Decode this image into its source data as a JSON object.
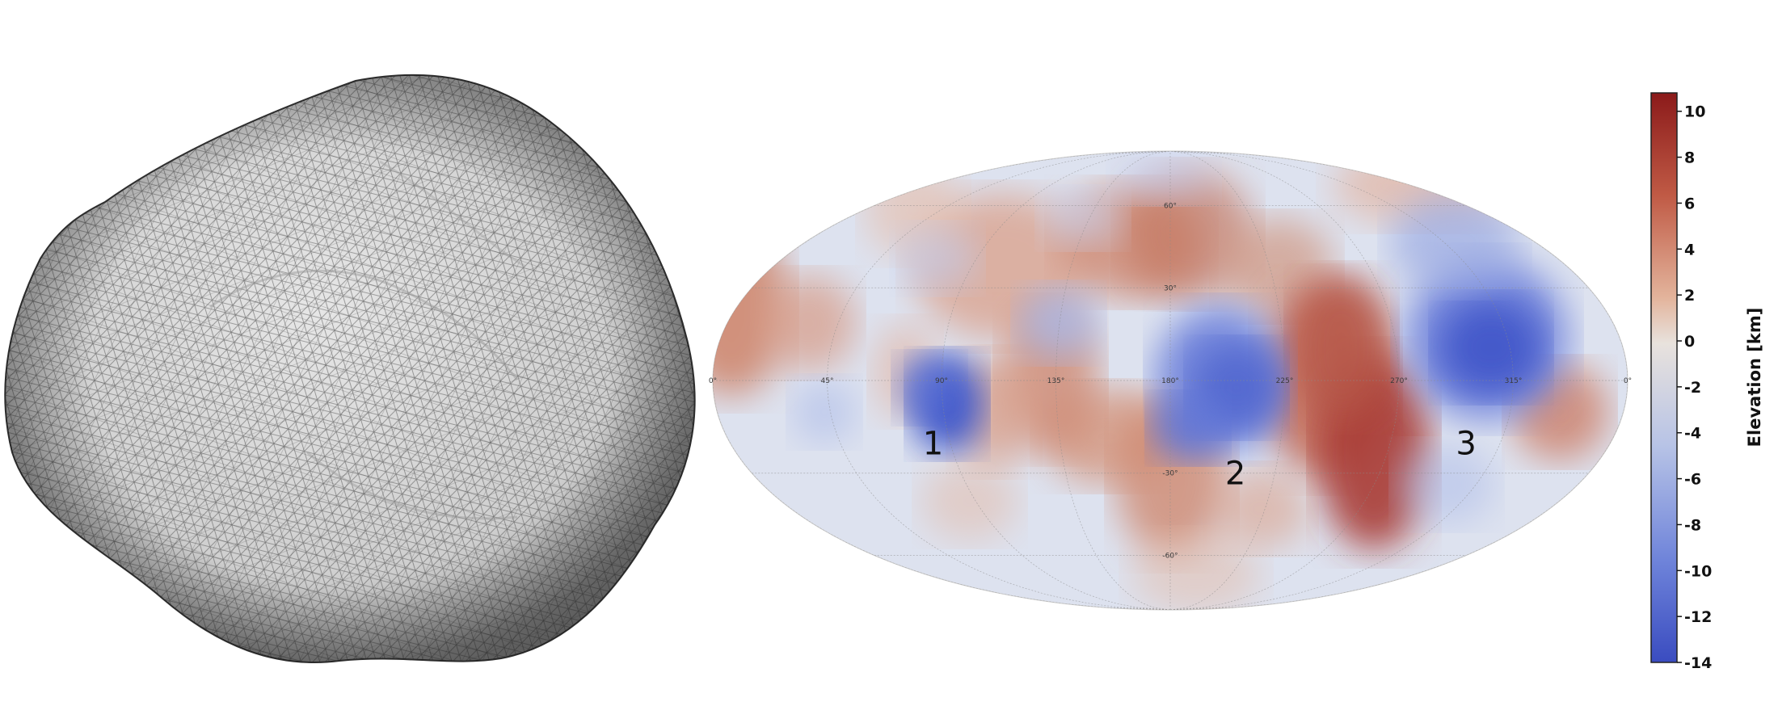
{
  "shape_model": {
    "name": "asteroid-shape-mesh",
    "fill": "#d4d4d4",
    "mesh_color": "#2c2c2c"
  },
  "elevation_map": {
    "projection": "mollweide",
    "longitude_ticks": [
      "0°",
      "45°",
      "90°",
      "135°",
      "180°",
      "225°",
      "270°",
      "315°",
      "0°"
    ],
    "latitude_ticks": [
      "60°",
      "30°",
      "-30°",
      "-60°"
    ],
    "regions": [
      {
        "label": "1",
        "lon": 83,
        "lat": -20
      },
      {
        "label": "2",
        "lon": 208,
        "lat": -30
      },
      {
        "label": "3",
        "lon": 301,
        "lat": -20
      }
    ]
  },
  "colorbar": {
    "title": "Elevation [km]",
    "ticks": [
      "10",
      "8",
      "6",
      "4",
      "2",
      "0",
      "-2",
      "-4",
      "-6",
      "-8",
      "-10",
      "-12",
      "-14"
    ],
    "min": -14,
    "max": 10.8,
    "colors": {
      "high": "#8b1a1a",
      "mid": "#e8e2dd",
      "low": "#3a4cc0"
    }
  }
}
